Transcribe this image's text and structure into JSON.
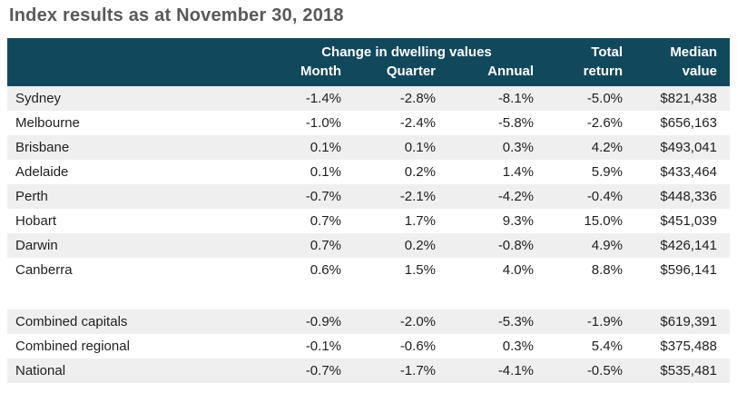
{
  "title": "Index results as at November 30, 2018",
  "colors": {
    "header_bg": "#12485C",
    "header_text": "#FFFFFF",
    "row_alt_bg": "#EFEFEF",
    "title_text": "#595959",
    "body_text": "#1F1F1F"
  },
  "chart_data": {
    "type": "table",
    "title": "Index results as at November 30, 2018",
    "header": {
      "group_label": "Change in dwelling values",
      "month": "Month",
      "quarter": "Quarter",
      "annual": "Annual",
      "total_line1": "Total",
      "total_line2": "return",
      "median_line1": "Median",
      "median_line2": "value"
    },
    "rows": [
      {
        "name": "Sydney",
        "month": "-1.4%",
        "quarter": "-2.8%",
        "annual": "-8.1%",
        "total_return": "-5.0%",
        "median_value": "$821,438"
      },
      {
        "name": "Melbourne",
        "month": "-1.0%",
        "quarter": "-2.4%",
        "annual": "-5.8%",
        "total_return": "-2.6%",
        "median_value": "$656,163"
      },
      {
        "name": "Brisbane",
        "month": "0.1%",
        "quarter": "0.1%",
        "annual": "0.3%",
        "total_return": "4.2%",
        "median_value": "$493,041"
      },
      {
        "name": "Adelaide",
        "month": "0.1%",
        "quarter": "0.2%",
        "annual": "1.4%",
        "total_return": "5.9%",
        "median_value": "$433,464"
      },
      {
        "name": "Perth",
        "month": "-0.7%",
        "quarter": "-2.1%",
        "annual": "-4.2%",
        "total_return": "-0.4%",
        "median_value": "$448,336"
      },
      {
        "name": "Hobart",
        "month": "0.7%",
        "quarter": "1.7%",
        "annual": "9.3%",
        "total_return": "15.0%",
        "median_value": "$451,039"
      },
      {
        "name": "Darwin",
        "month": "0.7%",
        "quarter": "0.2%",
        "annual": "-0.8%",
        "total_return": "4.9%",
        "median_value": "$426,141"
      },
      {
        "name": "Canberra",
        "month": "0.6%",
        "quarter": "1.5%",
        "annual": "4.0%",
        "total_return": "8.8%",
        "median_value": "$596,141"
      }
    ],
    "summary_rows": [
      {
        "name": "Combined capitals",
        "month": "-0.9%",
        "quarter": "-2.0%",
        "annual": "-5.3%",
        "total_return": "-1.9%",
        "median_value": "$619,391"
      },
      {
        "name": "Combined regional",
        "month": "-0.1%",
        "quarter": "-0.6%",
        "annual": "0.3%",
        "total_return": "5.4%",
        "median_value": "$375,488"
      },
      {
        "name": "National",
        "month": "-0.7%",
        "quarter": "-1.7%",
        "annual": "-4.1%",
        "total_return": "-0.5%",
        "median_value": "$535,481"
      }
    ]
  }
}
